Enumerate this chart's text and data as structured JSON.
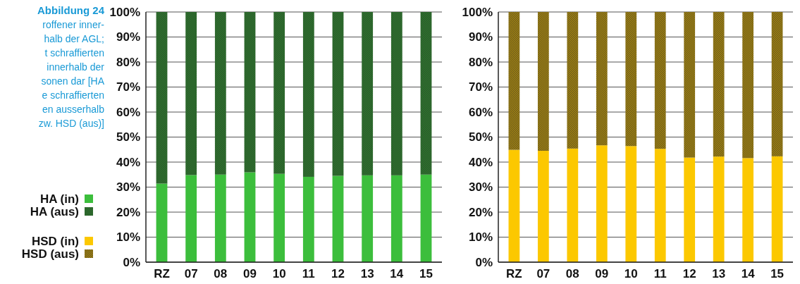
{
  "chart_data": [
    {
      "type": "bar",
      "stacked": true,
      "title": "Abbildung 24",
      "annotations": [
        "roffener inner-",
        "halb der AGL;",
        "t schraffierten",
        "innerhalb der",
        "sonen dar [HA",
        "e schraffierten",
        "en ausserhalb",
        "zw. HSD (aus)]"
      ],
      "categories": [
        "RZ",
        "07",
        "08",
        "09",
        "10",
        "11",
        "12",
        "13",
        "14",
        "15"
      ],
      "series": [
        {
          "name": "HA (in)",
          "color": "#3cbe3c",
          "values": [
            31.4,
            34.8,
            35.0,
            35.9,
            35.3,
            34.1,
            34.5,
            34.7,
            34.7,
            35.0
          ]
        },
        {
          "name": "HA (aus)",
          "color": "#2a7a2a",
          "values": [
            68.6,
            65.2,
            65.0,
            64.1,
            64.7,
            65.9,
            65.5,
            65.3,
            65.3,
            65.0
          ]
        }
      ],
      "ylim": [
        0,
        100
      ],
      "yticks": [
        {
          "value": 0,
          "label": "0%"
        },
        {
          "value": 10,
          "label": "10%"
        },
        {
          "value": 20,
          "label": "20%"
        },
        {
          "value": 30,
          "label": "30%"
        },
        {
          "value": 40,
          "label": "40%"
        },
        {
          "value": 50,
          "label": "50%"
        },
        {
          "value": 60,
          "label": "60%"
        },
        {
          "value": 70,
          "label": "70%"
        },
        {
          "value": 80,
          "label": "80%"
        },
        {
          "value": 90,
          "label": "90%"
        },
        {
          "value": 100,
          "label": "100%"
        }
      ],
      "grid": "y",
      "legend": "left"
    },
    {
      "type": "bar",
      "stacked": true,
      "categories": [
        "RZ",
        "07",
        "08",
        "09",
        "10",
        "11",
        "12",
        "13",
        "14",
        "15"
      ],
      "series": [
        {
          "name": "HSD (in)",
          "color": "#fcc800",
          "values": [
            44.9,
            44.5,
            45.4,
            46.7,
            46.4,
            45.3,
            41.8,
            42.2,
            41.6,
            42.3
          ]
        },
        {
          "name": "HSD (aus)",
          "color": "#a8870c",
          "values": [
            55.1,
            55.5,
            54.6,
            53.3,
            53.6,
            54.7,
            58.2,
            57.8,
            58.4,
            57.7
          ]
        }
      ],
      "ylim": [
        0,
        100
      ],
      "yticks": [
        {
          "value": 0,
          "label": "0%"
        },
        {
          "value": 10,
          "label": "10%"
        },
        {
          "value": 20,
          "label": "20%"
        },
        {
          "value": 30,
          "label": "30%"
        },
        {
          "value": 40,
          "label": "40%"
        },
        {
          "value": 50,
          "label": "50%"
        },
        {
          "value": 60,
          "label": "60%"
        },
        {
          "value": 70,
          "label": "70%"
        },
        {
          "value": 80,
          "label": "80%"
        },
        {
          "value": 90,
          "label": "90%"
        },
        {
          "value": 100,
          "label": "100%"
        }
      ],
      "grid": "y",
      "legend": "left"
    }
  ]
}
